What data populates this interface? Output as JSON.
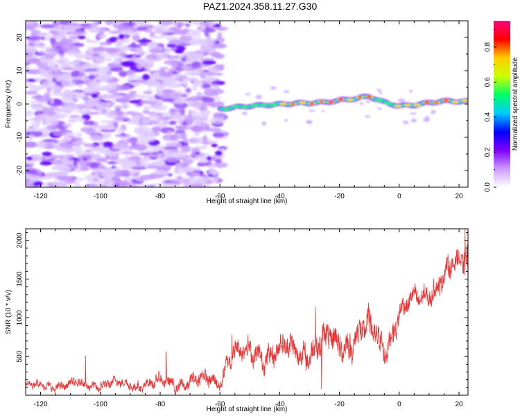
{
  "title": "PAZ1.2024.358.11.27.G30",
  "chart_data": [
    {
      "type": "heatmap",
      "xlabel": "Height of straight line (km)",
      "ylabel": "Frequency (Hz)",
      "xlim": [
        -125,
        23
      ],
      "ylim": [
        -25,
        25
      ],
      "xticks": [
        -120,
        -100,
        -80,
        -60,
        -40,
        -20,
        0,
        20
      ],
      "yticks": [
        -20,
        -10,
        0,
        10,
        20
      ],
      "colorbar": {
        "label": "Normalized spectral amplitude",
        "ticks": [
          0.0,
          0.2,
          0.4,
          0.6,
          0.8
        ],
        "range": [
          0,
          0.95
        ],
        "colors": [
          "#ffffff",
          "#cc99ff",
          "#7f00ff",
          "#0000ff",
          "#00ccff",
          "#00ff66",
          "#ccff00",
          "#ffcc00",
          "#ff0000",
          "#ff0080"
        ]
      },
      "noise_region_x": [
        -125,
        -59
      ],
      "ridge": {
        "x": [
          -60,
          -55,
          -50,
          -45,
          -40,
          -35,
          -30,
          -25,
          -20,
          -15,
          -10,
          -5,
          0,
          5,
          10,
          15,
          20,
          23
        ],
        "freq": [
          -1.5,
          -1,
          -0.6,
          -0.3,
          -0.1,
          0.2,
          0.3,
          0.5,
          1.1,
          1.6,
          2.3,
          0.5,
          -0.6,
          -0.3,
          0.4,
          0.9,
          0.8,
          0.8
        ],
        "peak_amplitude": [
          0.3,
          0.45,
          0.55,
          0.6,
          0.7,
          0.8,
          0.75,
          0.85,
          0.8,
          0.9,
          0.85,
          0.6,
          0.8,
          0.85,
          0.9,
          0.9,
          0.85,
          0.85
        ]
      }
    },
    {
      "type": "line",
      "xlabel": "Height of straight line (km)",
      "ylabel": "SNR (10 * v/v)",
      "xlim": [
        -125,
        23
      ],
      "ylim": [
        0,
        2150
      ],
      "xticks": [
        -120,
        -100,
        -80,
        -60,
        -40,
        -20,
        0,
        20
      ],
      "yticks": [
        500,
        1000,
        1500,
        2000
      ],
      "color": "#ee3333",
      "envelope": {
        "x": [
          -125,
          -110,
          -100,
          -90,
          -80,
          -70,
          -60,
          -57,
          -50,
          -40,
          -30,
          -20,
          -10,
          -5,
          0,
          10,
          20,
          23
        ],
        "mean": [
          120,
          130,
          140,
          140,
          150,
          170,
          200,
          520,
          540,
          560,
          600,
          700,
          800,
          650,
          1050,
          1350,
          1700,
          1800
        ],
        "spread": [
          80,
          100,
          110,
          110,
          130,
          150,
          170,
          220,
          240,
          260,
          300,
          320,
          330,
          300,
          250,
          230,
          250,
          300
        ]
      },
      "spikes": [
        {
          "x": -105,
          "y": 510
        },
        {
          "x": -78,
          "y": 560
        },
        {
          "x": -56,
          "y": 780
        },
        {
          "x": -28,
          "y": 1140
        },
        {
          "x": -26,
          "y": 80
        },
        {
          "x": -10,
          "y": 1120
        },
        {
          "x": 22,
          "y": 2150
        }
      ]
    }
  ]
}
